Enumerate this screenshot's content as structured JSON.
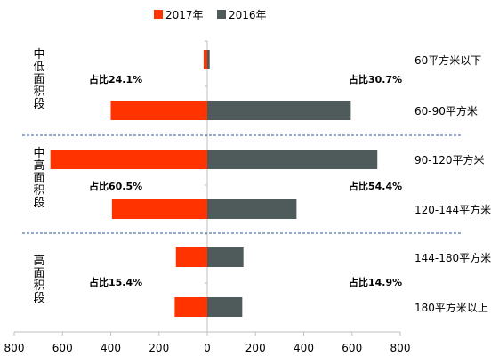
{
  "chart_data": {
    "type": "bar",
    "orientation": "horizontal-butterfly",
    "legend": {
      "placement": "top-center",
      "entries": [
        {
          "name": "2017年",
          "color": "#FF3300"
        },
        {
          "name": "2016年",
          "color": "#4F5B5A"
        }
      ]
    },
    "categories": [
      "60平方米以下",
      "60-90平方米",
      "90-120平方米",
      "120-144平方米",
      "144-180平方米",
      "180平方米以上"
    ],
    "series": [
      {
        "name": "2017年",
        "direction": "left",
        "color": "#FF3300",
        "values": [
          15,
          400,
          650,
          395,
          130,
          135
        ]
      },
      {
        "name": "2016年",
        "direction": "right",
        "color": "#4F5B5A",
        "values": [
          10,
          595,
          705,
          370,
          150,
          145
        ]
      }
    ],
    "x_axis": {
      "range": [
        -800,
        800
      ],
      "ticks": [
        -800,
        -600,
        -400,
        -200,
        0,
        200,
        400,
        600,
        800
      ],
      "tick_labels": [
        "800",
        "600",
        "400",
        "200",
        "0",
        "200",
        "400",
        "600",
        "800"
      ]
    },
    "groups": [
      {
        "label": "中低面积段",
        "categories": [
          0,
          1
        ],
        "share_2017": "占比24.1%",
        "share_2016": "占比30.7%"
      },
      {
        "label": "中高面积段",
        "categories": [
          2,
          3
        ],
        "share_2017": "占比60.5%",
        "share_2016": "占比54.4%"
      },
      {
        "label": "高面积段",
        "categories": [
          4,
          5
        ],
        "share_2017": "占比15.4%",
        "share_2016": "占比14.9%"
      }
    ],
    "grid": false
  }
}
